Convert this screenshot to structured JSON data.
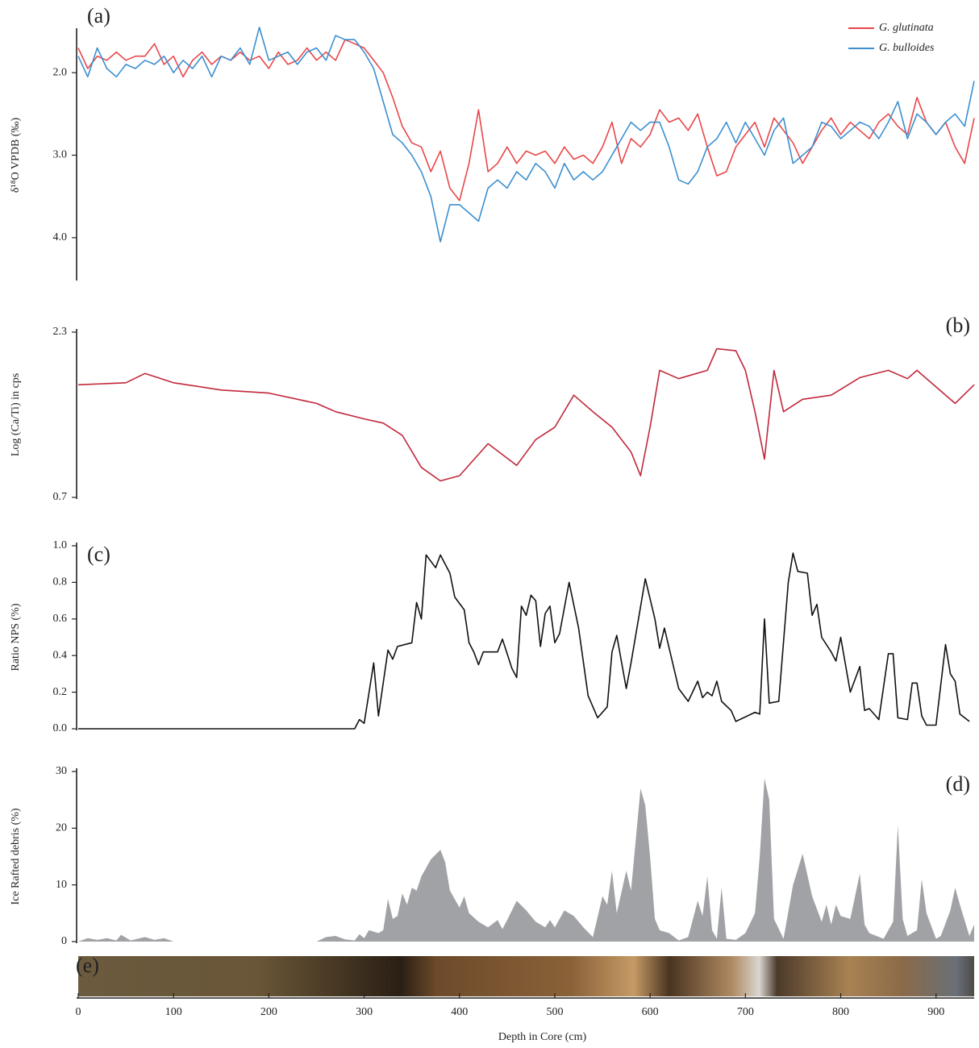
{
  "chart_data": [
    {
      "type": "line",
      "panel_label": "(a)",
      "y_label": "δ¹⁸O VPDB (‰)",
      "y_inverted": true,
      "legend": "top-right",
      "xlim": [
        0,
        940
      ],
      "ylim": [
        1.5,
        4.5
      ],
      "yticks": [
        {
          "value": 2,
          "label": "2.0"
        },
        {
          "value": 3,
          "label": "3.0"
        },
        {
          "value": 4,
          "label": "4.0"
        }
      ],
      "x": [
        0,
        10,
        20,
        30,
        40,
        50,
        60,
        70,
        80,
        90,
        100,
        110,
        120,
        130,
        140,
        150,
        160,
        170,
        180,
        190,
        200,
        210,
        220,
        230,
        240,
        250,
        260,
        270,
        280,
        290,
        300,
        310,
        320,
        330,
        340,
        350,
        360,
        370,
        380,
        390,
        400,
        410,
        420,
        430,
        440,
        450,
        460,
        470,
        480,
        490,
        500,
        510,
        520,
        530,
        540,
        550,
        560,
        570,
        580,
        590,
        600,
        610,
        620,
        630,
        640,
        650,
        660,
        670,
        680,
        690,
        700,
        710,
        720,
        730,
        740,
        750,
        760,
        770,
        780,
        790,
        800,
        810,
        820,
        830,
        840,
        850,
        860,
        870,
        880,
        890,
        900,
        910,
        920,
        930,
        940
      ],
      "series": [
        {
          "name": "G. glutinata",
          "color": "#e8474a",
          "values": [
            1.7,
            1.95,
            1.8,
            1.85,
            1.75,
            1.85,
            1.8,
            1.8,
            1.65,
            1.9,
            1.8,
            2.05,
            1.85,
            1.75,
            1.9,
            1.8,
            1.85,
            1.75,
            1.85,
            1.8,
            1.95,
            1.75,
            1.9,
            1.85,
            1.7,
            1.85,
            1.75,
            1.85,
            1.6,
            1.65,
            1.7,
            1.85,
            2.0,
            2.3,
            2.65,
            2.85,
            2.9,
            3.2,
            2.95,
            3.4,
            3.55,
            3.1,
            2.45,
            3.2,
            3.1,
            2.9,
            3.1,
            2.95,
            3.0,
            2.95,
            3.1,
            2.9,
            3.05,
            3.0,
            3.1,
            2.9,
            2.6,
            3.1,
            2.8,
            2.9,
            2.75,
            2.45,
            2.6,
            2.55,
            2.7,
            2.5,
            2.9,
            3.25,
            3.2,
            2.9,
            2.75,
            2.6,
            2.9,
            2.55,
            2.7,
            2.85,
            3.1,
            2.9,
            2.7,
            2.55,
            2.75,
            2.6,
            2.7,
            2.8,
            2.6,
            2.5,
            2.65,
            2.75,
            2.3,
            2.6,
            2.75,
            2.6,
            2.9,
            3.1,
            2.55
          ]
        },
        {
          "name": "G. bulloides",
          "color": "#3a8fd0",
          "values": [
            1.8,
            2.05,
            1.7,
            1.95,
            2.05,
            1.9,
            1.95,
            1.85,
            1.9,
            1.8,
            2.0,
            1.85,
            1.95,
            1.8,
            2.05,
            1.8,
            1.85,
            1.7,
            1.9,
            1.45,
            1.85,
            1.8,
            1.75,
            1.9,
            1.75,
            1.7,
            1.85,
            1.55,
            1.6,
            1.6,
            1.75,
            1.95,
            2.35,
            2.75,
            2.85,
            3.0,
            3.2,
            3.5,
            4.05,
            3.6,
            3.6,
            3.7,
            3.8,
            3.4,
            3.3,
            3.4,
            3.2,
            3.3,
            3.1,
            3.2,
            3.4,
            3.1,
            3.3,
            3.2,
            3.3,
            3.2,
            3.0,
            2.8,
            2.6,
            2.7,
            2.6,
            2.6,
            2.9,
            3.3,
            3.35,
            3.2,
            2.9,
            2.8,
            2.6,
            2.85,
            2.6,
            2.8,
            3.0,
            2.7,
            2.55,
            3.1,
            3.0,
            2.9,
            2.6,
            2.65,
            2.8,
            2.7,
            2.6,
            2.65,
            2.8,
            2.6,
            2.35,
            2.8,
            2.5,
            2.6,
            2.75,
            2.6,
            2.5,
            2.65,
            2.1
          ]
        }
      ]
    },
    {
      "type": "line",
      "panel_label": "(b)",
      "y_label": "Log (Ca/Ti) in cps",
      "xlim": [
        0,
        940
      ],
      "ylim": [
        0.7,
        2.3
      ],
      "yticks": [
        0.7,
        2.3
      ],
      "x": [
        0,
        50,
        70,
        100,
        150,
        200,
        250,
        270,
        300,
        320,
        340,
        360,
        380,
        400,
        430,
        460,
        480,
        500,
        520,
        540,
        560,
        580,
        590,
        600,
        610,
        630,
        660,
        670,
        690,
        700,
        710,
        720,
        730,
        740,
        760,
        790,
        820,
        850,
        870,
        880,
        900,
        920,
        940
      ],
      "series": [
        {
          "name": "Log (Ca/Ti)",
          "color": "#c0283a",
          "values": [
            1.79,
            1.81,
            1.9,
            1.81,
            1.74,
            1.71,
            1.61,
            1.53,
            1.46,
            1.42,
            1.3,
            0.99,
            0.86,
            0.91,
            1.22,
            1.01,
            1.26,
            1.38,
            1.69,
            1.53,
            1.38,
            1.14,
            0.91,
            1.38,
            1.93,
            1.85,
            1.93,
            2.14,
            2.12,
            1.93,
            1.53,
            1.07,
            1.93,
            1.53,
            1.65,
            1.69,
            1.86,
            1.93,
            1.85,
            1.93,
            1.77,
            1.61,
            1.79
          ]
        }
      ]
    },
    {
      "type": "line",
      "panel_label": "(c)",
      "y_label": "Ratio NPS (%)",
      "xlim": [
        0,
        940
      ],
      "ylim": [
        0,
        1
      ],
      "yticks": [
        {
          "value": 0,
          "label": "0.0"
        },
        {
          "value": 0.2,
          "label": "0.2"
        },
        {
          "value": 0.4,
          "label": "0.4"
        },
        {
          "value": 0.6,
          "label": "0.6"
        },
        {
          "value": 0.8,
          "label": "0.8"
        },
        {
          "value": 1,
          "label": "1.0"
        }
      ],
      "x": [
        0,
        290,
        295,
        300,
        310,
        315,
        320,
        325,
        330,
        335,
        350,
        355,
        360,
        365,
        375,
        380,
        390,
        395,
        405,
        410,
        415,
        420,
        425,
        440,
        445,
        455,
        460,
        465,
        470,
        475,
        480,
        485,
        490,
        495,
        500,
        505,
        515,
        525,
        535,
        545,
        555,
        560,
        565,
        575,
        580,
        595,
        605,
        610,
        615,
        630,
        640,
        650,
        655,
        660,
        665,
        670,
        675,
        685,
        690,
        710,
        715,
        720,
        725,
        735,
        745,
        750,
        755,
        765,
        770,
        775,
        780,
        790,
        795,
        800,
        810,
        820,
        825,
        830,
        840,
        850,
        855,
        860,
        870,
        875,
        880,
        885,
        890,
        900,
        910,
        915,
        920,
        925,
        935
      ],
      "series": [
        {
          "name": "Ratio NPS",
          "color": "#111111",
          "values": [
            0,
            0,
            0.05,
            0.03,
            0.36,
            0.07,
            0.25,
            0.43,
            0.38,
            0.45,
            0.47,
            0.69,
            0.6,
            0.95,
            0.88,
            0.95,
            0.85,
            0.72,
            0.65,
            0.47,
            0.42,
            0.35,
            0.42,
            0.42,
            0.49,
            0.33,
            0.28,
            0.67,
            0.62,
            0.73,
            0.7,
            0.45,
            0.63,
            0.67,
            0.47,
            0.52,
            0.8,
            0.55,
            0.18,
            0.06,
            0.12,
            0.42,
            0.51,
            0.22,
            0.36,
            0.82,
            0.6,
            0.44,
            0.55,
            0.22,
            0.15,
            0.26,
            0.17,
            0.2,
            0.18,
            0.26,
            0.15,
            0.1,
            0.04,
            0.09,
            0.08,
            0.6,
            0.14,
            0.15,
            0.8,
            0.96,
            0.86,
            0.85,
            0.62,
            0.68,
            0.5,
            0.42,
            0.37,
            0.5,
            0.2,
            0.34,
            0.1,
            0.11,
            0.05,
            0.41,
            0.41,
            0.06,
            0.05,
            0.25,
            0.25,
            0.07,
            0.02,
            0.02,
            0.46,
            0.3,
            0.26,
            0.08,
            0.04
          ]
        }
      ]
    },
    {
      "type": "area",
      "panel_label": "(d)",
      "y_label": "Ice Rafted debris (%)",
      "x_label": "Depth in Core (cm)",
      "xlim": [
        0,
        940
      ],
      "ylim": [
        0,
        30
      ],
      "yticks": [
        0,
        10,
        20,
        30
      ],
      "xticks": [
        0,
        100,
        200,
        300,
        400,
        500,
        600,
        700,
        800,
        900
      ],
      "x": [
        0,
        10,
        20,
        30,
        40,
        45,
        55,
        70,
        80,
        90,
        100,
        250,
        260,
        270,
        280,
        290,
        295,
        300,
        305,
        315,
        320,
        325,
        330,
        335,
        340,
        345,
        350,
        355,
        360,
        370,
        380,
        385,
        390,
        400,
        405,
        410,
        420,
        430,
        440,
        445,
        450,
        460,
        470,
        480,
        490,
        495,
        500,
        510,
        520,
        530,
        540,
        550,
        555,
        560,
        565,
        575,
        580,
        590,
        595,
        600,
        605,
        610,
        620,
        630,
        640,
        650,
        655,
        660,
        665,
        670,
        675,
        680,
        690,
        700,
        710,
        715,
        720,
        725,
        730,
        740,
        750,
        760,
        770,
        780,
        785,
        790,
        795,
        800,
        810,
        820,
        825,
        830,
        845,
        850,
        855,
        860,
        865,
        870,
        880,
        885,
        890,
        900,
        905,
        915,
        920,
        925,
        935,
        940
      ],
      "series": [
        {
          "name": "Ice Rafted debris",
          "color": "#a0a2a5",
          "values": [
            0,
            0.6,
            0.3,
            0.6,
            0.2,
            1.2,
            0.2,
            0.8,
            0.3,
            0.6,
            0,
            0,
            0.8,
            1.0,
            0.4,
            0.2,
            1.3,
            0.6,
            2.0,
            1.5,
            2.0,
            7.5,
            4.0,
            4.5,
            8.5,
            6.5,
            9.5,
            9.0,
            11.5,
            14.5,
            16.2,
            14,
            9,
            6,
            8,
            5,
            3.5,
            2.5,
            3.8,
            2.2,
            3.8,
            7.2,
            5.5,
            3.5,
            2.5,
            3.8,
            2.5,
            5.5,
            4.5,
            2.5,
            0.8,
            8,
            6.5,
            12.5,
            5,
            12.5,
            9,
            27,
            24,
            15,
            4,
            2,
            1.5,
            0.2,
            0.8,
            7.2,
            4.5,
            11.5,
            2,
            0.5,
            9.5,
            0.5,
            0.3,
            1.5,
            5,
            15,
            28.8,
            25,
            4,
            0.5,
            10,
            15.5,
            8,
            3.5,
            6.5,
            3,
            6.5,
            4.5,
            4,
            12,
            3,
            1.5,
            0.5,
            2,
            3.5,
            20.5,
            4,
            1,
            2,
            11,
            5,
            0.5,
            1,
            5.5,
            9.5,
            6.5,
            1,
            3
          ]
        }
      ]
    }
  ],
  "core_panel_label": "(e)"
}
